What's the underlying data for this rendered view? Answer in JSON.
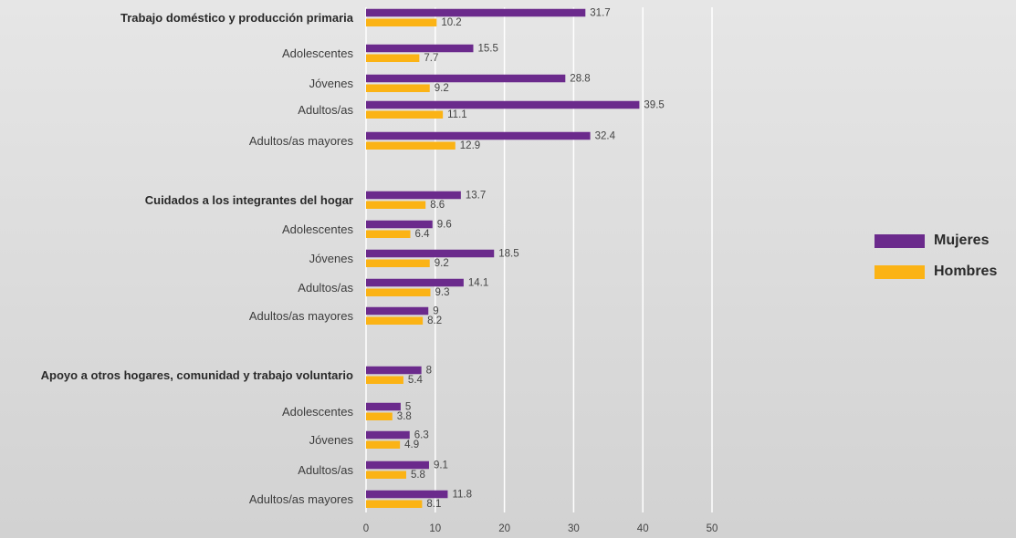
{
  "chart_data": {
    "type": "bar",
    "orientation": "horizontal",
    "title": "",
    "xlabel": "",
    "ylabel": "",
    "xlim": [
      0,
      50
    ],
    "ticks": [
      0,
      10,
      20,
      30,
      40,
      50
    ],
    "grid": true,
    "legend_position": "right",
    "series": [
      {
        "name": "Mujeres",
        "color": "#6b2a8c"
      },
      {
        "name": "Hombres",
        "color": "#fbb315"
      }
    ],
    "rows": [
      {
        "label": "Trabajo doméstico y producción primaria",
        "bold": true,
        "values": [
          31.7,
          10.2
        ]
      },
      {
        "label": "Adolescentes",
        "bold": false,
        "values": [
          15.5,
          7.7
        ]
      },
      {
        "label": "Jóvenes",
        "bold": false,
        "values": [
          28.8,
          9.2
        ]
      },
      {
        "label": "Adultos/as",
        "bold": false,
        "values": [
          39.5,
          11.1
        ]
      },
      {
        "label": "Adultos/as mayores",
        "bold": false,
        "values": [
          32.4,
          12.9
        ]
      },
      {
        "label": "Cuidados a los integrantes del hogar",
        "bold": true,
        "values": [
          13.7,
          8.6
        ]
      },
      {
        "label": "Adolescentes",
        "bold": false,
        "values": [
          9.6,
          6.4
        ]
      },
      {
        "label": "Jóvenes",
        "bold": false,
        "values": [
          18.5,
          9.2
        ]
      },
      {
        "label": "Adultos/as",
        "bold": false,
        "values": [
          14.1,
          9.3
        ]
      },
      {
        "label": "Adultos/as mayores",
        "bold": false,
        "values": [
          9,
          8.2
        ]
      },
      {
        "label": "Apoyo a otros hogares, comunidad y trabajo voluntario",
        "bold": true,
        "values": [
          8,
          5.4
        ]
      },
      {
        "label": "Adolescentes",
        "bold": false,
        "values": [
          5,
          3.8
        ]
      },
      {
        "label": "Jóvenes",
        "bold": false,
        "values": [
          6.3,
          4.9
        ]
      },
      {
        "label": "Adultos/as",
        "bold": false,
        "values": [
          9.1,
          5.8
        ]
      },
      {
        "label": "Adultos/as mayores",
        "bold": false,
        "values": [
          11.8,
          8.1
        ]
      }
    ]
  }
}
